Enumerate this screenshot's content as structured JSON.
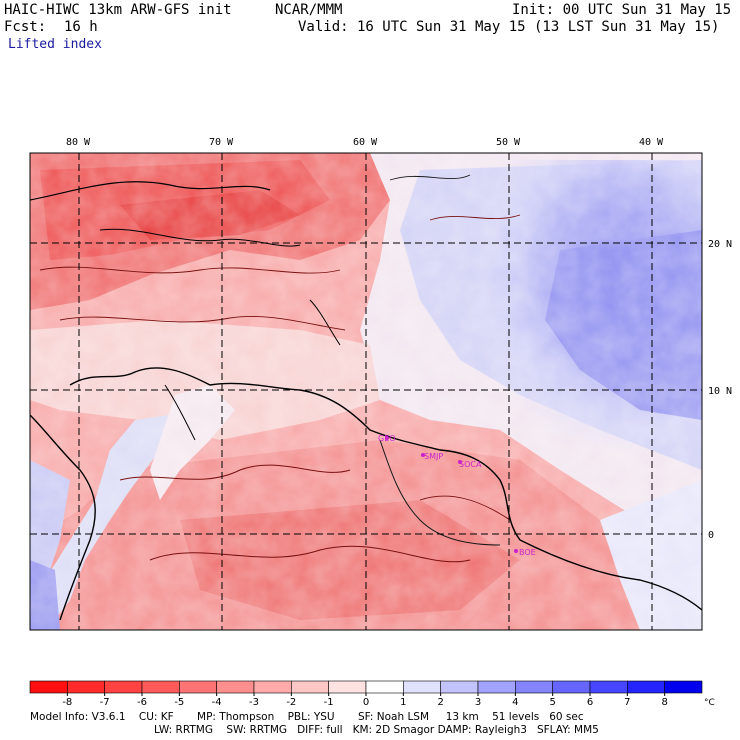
{
  "header": {
    "model": "HAIC-HIWC 13km ARW-GFS init",
    "org": "NCAR/MMM",
    "init": "Init: 00 UTC Sun 31 May 15",
    "fcst_label": "Fcst:",
    "fcst_value": "16 h",
    "valid": "Valid: 16 UTC Sun 31 May 15 (13 LST Sun 31 May 15)",
    "field": "Lifted index"
  },
  "axes": {
    "lon_labels": [
      "80 W",
      "70 W",
      "60 W",
      "50 W",
      "40 W"
    ],
    "lat_labels": [
      "20 N",
      "10 N",
      "0"
    ]
  },
  "stations": [
    "GEO",
    "SMJP",
    "SOCA",
    "BOE"
  ],
  "colorbar": {
    "ticks": [
      "-8",
      "-7",
      "-6",
      "-5",
      "-4",
      "-3",
      "-2",
      "-1",
      "0",
      "1",
      "2",
      "3",
      "4",
      "5",
      "6",
      "7",
      "8"
    ],
    "unit": "°C",
    "colors": [
      "#ff1010",
      "#ff2b2b",
      "#ff4343",
      "#ff5a5a",
      "#ff7474",
      "#ff8e8e",
      "#ffaaaa",
      "#ffc6c6",
      "#ffe2e2",
      "#ffffff",
      "#e0e0ff",
      "#c2c2ff",
      "#a2a2ff",
      "#8484ff",
      "#6666ff",
      "#4646ff",
      "#2424ff",
      "#0000ee"
    ]
  },
  "footer": {
    "line1": "Model Info: V3.6.1    CU: KF       MP: Thompson    PBL: YSU       SF: Noah LSM     13 km    51 levels   60 sec",
    "line2": "LW: RRTMG    SW: RRTMG   DIFF: full   KM: 2D Smagor DAMP: Rayleigh3   SFLAY: MM5"
  }
}
